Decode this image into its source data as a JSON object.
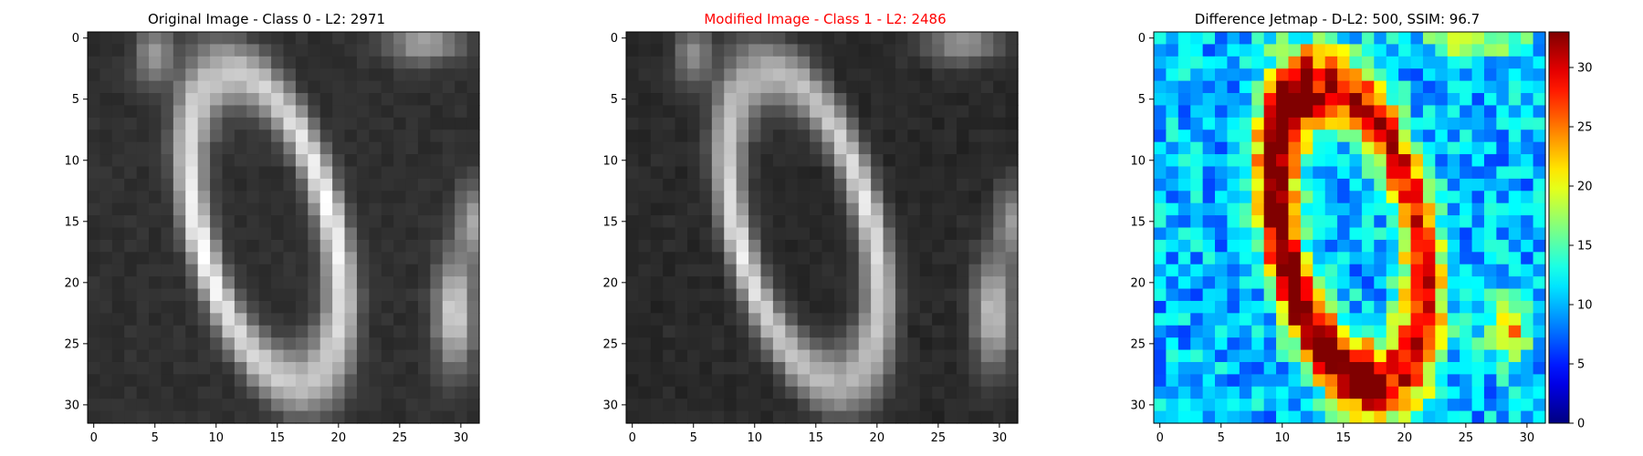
{
  "chart_data": [
    {
      "type": "heatmap",
      "title": "Original Image - Class 0 - L2: 2971",
      "title_color": "#000000",
      "colormap": "gray",
      "grid": false,
      "xlim": [
        -0.5,
        31.5
      ],
      "ylim": [
        31.5,
        -0.5
      ],
      "xticks": [
        "0",
        "5",
        "10",
        "15",
        "20",
        "25",
        "30"
      ],
      "yticks": [
        "0",
        "5",
        "10",
        "15",
        "20",
        "25",
        "30"
      ],
      "values_desc": "32x32 grayscale image of a handwritten-style digit 0 (white elliptical ring on dark background)"
    },
    {
      "type": "heatmap",
      "title": "Modified Image - Class 1 - L2: 2486",
      "title_color": "#ff0000",
      "colormap": "gray",
      "grid": false,
      "xlim": [
        -0.5,
        31.5
      ],
      "ylim": [
        31.5,
        -0.5
      ],
      "xticks": [
        "0",
        "5",
        "10",
        "15",
        "20",
        "25",
        "30"
      ],
      "yticks": [
        "0",
        "5",
        "10",
        "15",
        "20",
        "25",
        "30"
      ]
    },
    {
      "type": "heatmap",
      "title": "Difference Jetmap - D-L2: 500, SSIM: 96.7",
      "title_color": "#000000",
      "colormap": "jet",
      "grid": false,
      "xlim": [
        -0.5,
        31.5
      ],
      "ylim": [
        31.5,
        -0.5
      ],
      "xticks": [
        "0",
        "5",
        "10",
        "15",
        "20",
        "25",
        "30"
      ],
      "yticks": [
        "0",
        "5",
        "10",
        "15",
        "20",
        "25",
        "30"
      ],
      "colorbar": {
        "range": [
          0,
          33
        ],
        "ticks": [
          "0",
          "5",
          "10",
          "15",
          "20",
          "25",
          "30"
        ]
      }
    }
  ]
}
